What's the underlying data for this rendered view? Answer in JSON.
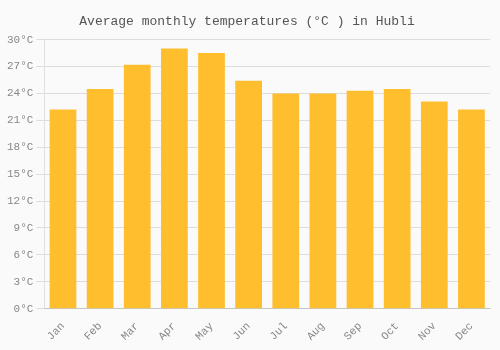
{
  "chart_data": {
    "type": "bar",
    "title": "Average monthly temperatures (°C ) in Hubli",
    "categories": [
      "Jan",
      "Feb",
      "Mar",
      "Apr",
      "May",
      "Jun",
      "Jul",
      "Aug",
      "Sep",
      "Oct",
      "Nov",
      "Dec"
    ],
    "values": [
      22.2,
      24.5,
      27.2,
      29.0,
      28.5,
      25.4,
      24.0,
      24.0,
      24.3,
      24.5,
      23.1,
      22.2
    ],
    "color": "#FFBE2D",
    "ylim": [
      0,
      30
    ],
    "yticks": [
      {
        "value": 0,
        "label": "0°C"
      },
      {
        "value": 3,
        "label": "3°C"
      },
      {
        "value": 6,
        "label": "6°C"
      },
      {
        "value": 9,
        "label": "9°C"
      },
      {
        "value": 12,
        "label": "12°C"
      },
      {
        "value": 15,
        "label": "15°C"
      },
      {
        "value": 18,
        "label": "18°C"
      },
      {
        "value": 21,
        "label": "21°C"
      },
      {
        "value": 24,
        "label": "24°C"
      },
      {
        "value": 27,
        "label": "27°C"
      },
      {
        "value": 30,
        "label": "30°C"
      }
    ],
    "grid": true
  }
}
